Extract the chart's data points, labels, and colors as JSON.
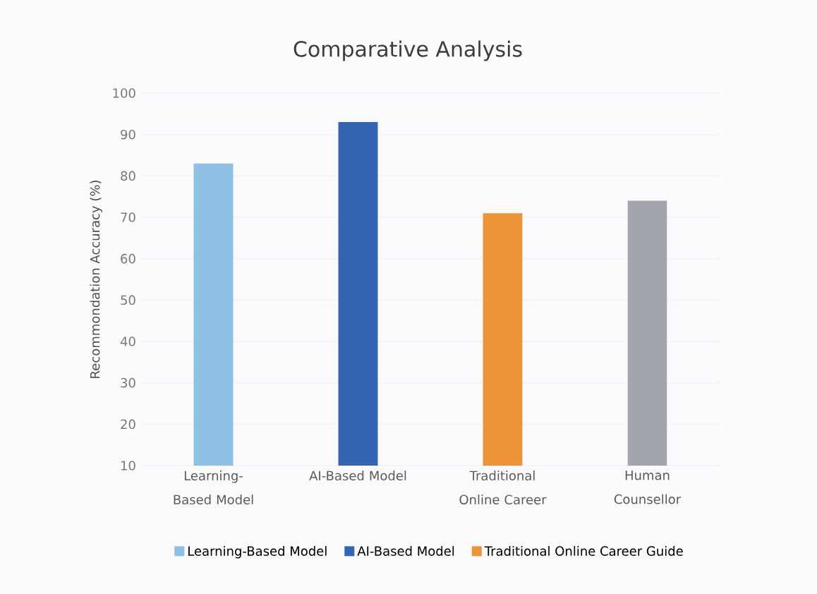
{
  "chart_data": {
    "type": "bar",
    "title": "Comparative Analysis",
    "ylabel": "Recommondation Accuracy (%)",
    "categories": [
      "Learning-Based Model",
      "AI-Based Model",
      "Traditional Online Career",
      "Human Counsellor"
    ],
    "series": [
      {
        "name": "Learning-Based Model",
        "color": "#8fc0e6",
        "values": [
          83,
          null,
          null,
          null
        ]
      },
      {
        "name": "AI-Based Model",
        "color": "#3464b4",
        "values": [
          null,
          93,
          null,
          null
        ]
      },
      {
        "name": "Traditional Online Career Guide",
        "color": "#ec9438",
        "values": [
          null,
          null,
          71,
          null
        ]
      },
      {
        "color": "#a3a5ad",
        "values": [
          null,
          null,
          null,
          74
        ]
      }
    ],
    "ylim": [
      10,
      100
    ],
    "yticks": [
      10,
      20,
      30,
      40,
      50,
      60,
      70,
      80,
      90,
      100
    ],
    "grid": "y",
    "legend": "bottom"
  }
}
